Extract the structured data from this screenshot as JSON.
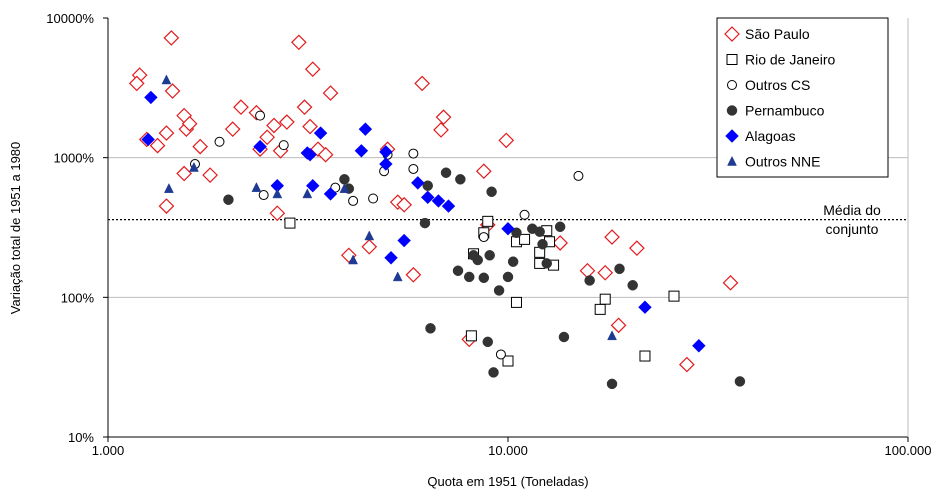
{
  "chart_data": {
    "type": "scatter",
    "title": "",
    "xlabel": "Quota em 1951 (Toneladas)",
    "ylabel": "Variação total de 1951 a 1980",
    "x_scale": "log",
    "y_scale": "log",
    "xlim": [
      1000,
      100000
    ],
    "ylim": [
      0.1,
      100
    ],
    "x_tick_labels": [
      "1.000",
      "10.000",
      "100.000"
    ],
    "y_tick_labels": [
      "10%",
      "100%",
      "1000%",
      "10000%"
    ],
    "grid": "horizontal",
    "legend_position": "top-right",
    "reference_line": {
      "y": 3.6,
      "label_lines": [
        "Média do",
        "conjunto"
      ],
      "style": "dotted"
    },
    "series": [
      {
        "name": "São Paulo",
        "marker": "diamond-open",
        "color": "#e41a1c",
        "points": [
          [
            1200,
            39
          ],
          [
            1180,
            34
          ],
          [
            1250,
            13.5
          ],
          [
            1330,
            12.2
          ],
          [
            1400,
            15
          ],
          [
            1440,
            72
          ],
          [
            1450,
            30
          ],
          [
            1400,
            4.5
          ],
          [
            1550,
            20
          ],
          [
            1570,
            16
          ],
          [
            1600,
            17.5
          ],
          [
            1550,
            7.7
          ],
          [
            1700,
            12
          ],
          [
            1800,
            7.5
          ],
          [
            2050,
            16
          ],
          [
            2150,
            23
          ],
          [
            2350,
            21
          ],
          [
            2400,
            11.5
          ],
          [
            2500,
            14
          ],
          [
            2600,
            17
          ],
          [
            2650,
            4.0
          ],
          [
            2800,
            18
          ],
          [
            2700,
            11.2
          ],
          [
            3000,
            67
          ],
          [
            3100,
            23
          ],
          [
            3250,
            43
          ],
          [
            3200,
            16.7
          ],
          [
            3350,
            11.5
          ],
          [
            3500,
            10.5
          ],
          [
            3600,
            29
          ],
          [
            4000,
            2.0
          ],
          [
            4500,
            2.3
          ],
          [
            5000,
            11.5
          ],
          [
            5300,
            4.8
          ],
          [
            5500,
            4.6
          ],
          [
            5800,
            1.45
          ],
          [
            6100,
            34
          ],
          [
            6800,
            15.8
          ],
          [
            6900,
            19.5
          ],
          [
            8700,
            8.0
          ],
          [
            8900,
            3.3
          ],
          [
            9900,
            13.3
          ],
          [
            8000,
            0.5
          ],
          [
            13500,
            2.45
          ],
          [
            15800,
            1.55
          ],
          [
            17500,
            1.5
          ],
          [
            18200,
            2.7
          ],
          [
            18900,
            0.63
          ],
          [
            21000,
            2.25
          ],
          [
            28000,
            0.33
          ],
          [
            36000,
            1.27
          ]
        ]
      },
      {
        "name": "Rio de Janeiro",
        "marker": "square-open",
        "color": "#000000",
        "points": [
          [
            2850,
            3.4
          ],
          [
            8200,
            2.05
          ],
          [
            8700,
            2.9
          ],
          [
            8900,
            3.5
          ],
          [
            10500,
            2.5
          ],
          [
            11000,
            2.6
          ],
          [
            12000,
            2.1
          ],
          [
            12000,
            1.75
          ],
          [
            12500,
            3.0
          ],
          [
            12700,
            2.5
          ],
          [
            13000,
            1.7
          ],
          [
            17000,
            0.82
          ],
          [
            17500,
            0.97
          ],
          [
            26000,
            1.02
          ],
          [
            10500,
            0.92
          ],
          [
            8100,
            0.53
          ],
          [
            10000,
            0.35
          ],
          [
            22000,
            0.38
          ]
        ]
      },
      {
        "name": "Outros CS",
        "marker": "circle-open",
        "color": "#000000",
        "points": [
          [
            1650,
            9.0
          ],
          [
            1900,
            13
          ],
          [
            2400,
            20
          ],
          [
            2450,
            5.4
          ],
          [
            2750,
            12.3
          ],
          [
            3700,
            6.1
          ],
          [
            4100,
            4.9
          ],
          [
            4600,
            5.1
          ],
          [
            4900,
            8.0
          ],
          [
            5000,
            10.5
          ],
          [
            5800,
            10.7
          ],
          [
            5800,
            8.3
          ],
          [
            8700,
            2.7
          ],
          [
            9600,
            0.39
          ],
          [
            11000,
            3.9
          ],
          [
            15000,
            7.4
          ]
        ]
      },
      {
        "name": "Pernambuco",
        "marker": "circle-filled",
        "color": "#333333",
        "points": [
          [
            2000,
            5.0
          ],
          [
            3900,
            7.0
          ],
          [
            4000,
            6.0
          ],
          [
            6300,
            6.3
          ],
          [
            6400,
            0.6
          ],
          [
            7000,
            7.8
          ],
          [
            7600,
            7.0
          ],
          [
            6200,
            3.4
          ],
          [
            7500,
            1.55
          ],
          [
            8000,
            1.4
          ],
          [
            8200,
            2.0
          ],
          [
            8400,
            1.85
          ],
          [
            8700,
            1.38
          ],
          [
            9000,
            2.0
          ],
          [
            9100,
            5.7
          ],
          [
            9200,
            0.29
          ],
          [
            9500,
            1.12
          ],
          [
            10000,
            1.4
          ],
          [
            10300,
            1.8
          ],
          [
            10500,
            2.9
          ],
          [
            11500,
            3.1
          ],
          [
            12000,
            2.95
          ],
          [
            12200,
            2.4
          ],
          [
            12500,
            1.75
          ],
          [
            13500,
            3.2
          ],
          [
            13800,
            0.52
          ],
          [
            16000,
            1.32
          ],
          [
            18200,
            0.24
          ],
          [
            19000,
            1.6
          ],
          [
            20500,
            1.22
          ],
          [
            38000,
            0.25
          ],
          [
            8900,
            0.48
          ]
        ]
      },
      {
        "name": "Alagoas",
        "marker": "diamond-filled",
        "color": "#0000ff",
        "points": [
          [
            1280,
            27
          ],
          [
            1260,
            13.5
          ],
          [
            2400,
            12
          ],
          [
            2650,
            6.3
          ],
          [
            3150,
            10.8
          ],
          [
            3200,
            10.5
          ],
          [
            3250,
            6.3
          ],
          [
            3400,
            15
          ],
          [
            3600,
            5.5
          ],
          [
            4300,
            11.2
          ],
          [
            4400,
            16
          ],
          [
            4950,
            11
          ],
          [
            4950,
            9.0
          ],
          [
            5100,
            1.92
          ],
          [
            5500,
            2.55
          ],
          [
            5950,
            6.6
          ],
          [
            6300,
            5.2
          ],
          [
            6700,
            4.9
          ],
          [
            7100,
            4.5
          ],
          [
            10000,
            3.1
          ],
          [
            22000,
            0.85
          ],
          [
            30000,
            0.45
          ]
        ]
      },
      {
        "name": "Outros NNE",
        "marker": "triangle-filled",
        "color": "#1f3a93",
        "points": [
          [
            1400,
            36
          ],
          [
            1420,
            6.0
          ],
          [
            1640,
            8.5
          ],
          [
            2350,
            6.1
          ],
          [
            2650,
            5.5
          ],
          [
            3150,
            5.5
          ],
          [
            3900,
            6.0
          ],
          [
            4100,
            1.85
          ],
          [
            4500,
            2.75
          ],
          [
            5300,
            1.4
          ],
          [
            18200,
            0.53
          ]
        ]
      }
    ]
  }
}
